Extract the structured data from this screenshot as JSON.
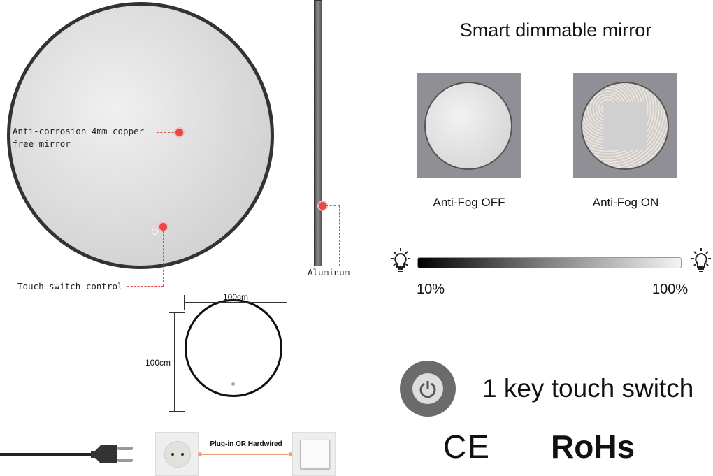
{
  "mirror_diagram": {
    "label_mirror_line1": "Anti-corrosion 4mm copper",
    "label_mirror_line2": "free mirror",
    "label_touch": "Touch switch control",
    "label_frame": "Aluminum",
    "accent": "#e8474a"
  },
  "dimming": {
    "title": "Smart dimmable mirror",
    "antifog_off": "Anti-Fog OFF",
    "antifog_on": "Anti-Fog ON",
    "min_label": "10%",
    "max_label": "100%",
    "min_percent": 10,
    "max_percent": 100
  },
  "dimensions": {
    "width": "100cm",
    "height": "100cm"
  },
  "switch": {
    "label": "1 key touch switch",
    "icon": "power-icon"
  },
  "certifications": {
    "ce": "CE",
    "rohs": "RoHs"
  },
  "power": {
    "label": "Plug-in OR Hardwired",
    "line_color": "#e8a27a"
  }
}
